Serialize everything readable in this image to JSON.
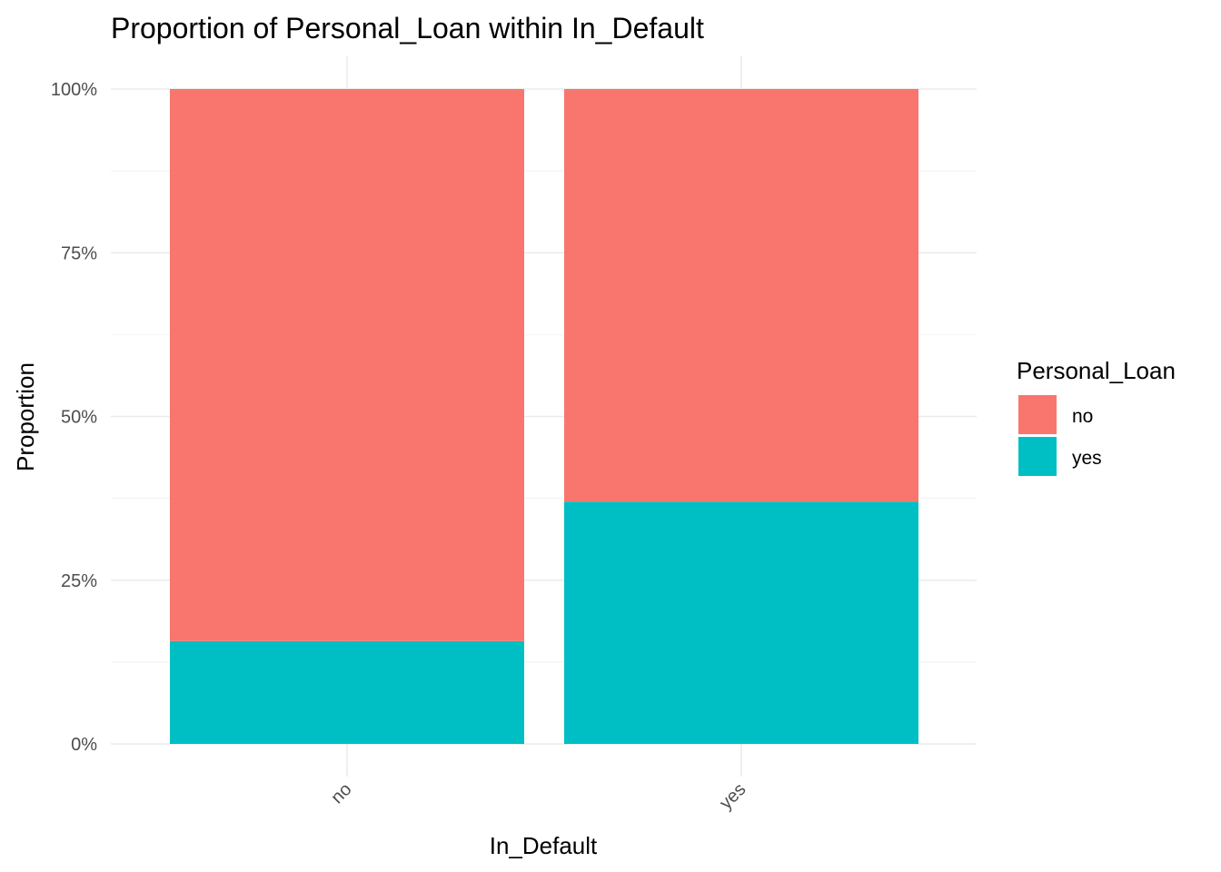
{
  "chart_data": {
    "type": "bar",
    "stacked": true,
    "title": "Proportion of Personal_Loan within In_Default",
    "xlabel": "In_Default",
    "ylabel": "Proportion",
    "categories": [
      "no",
      "yes"
    ],
    "series": [
      {
        "name": "no",
        "color": "#F8766D",
        "values": [
          0.843,
          0.63
        ]
      },
      {
        "name": "yes",
        "color": "#00BFC4",
        "values": [
          0.157,
          0.37
        ]
      }
    ],
    "ylim": [
      0,
      1
    ],
    "yticks": [
      0,
      0.25,
      0.5,
      0.75,
      1
    ],
    "ytick_labels": [
      "0%",
      "25%",
      "50%",
      "75%",
      "100%"
    ],
    "legend": {
      "title": "Personal_Loan",
      "position": "right"
    },
    "grid": true
  }
}
